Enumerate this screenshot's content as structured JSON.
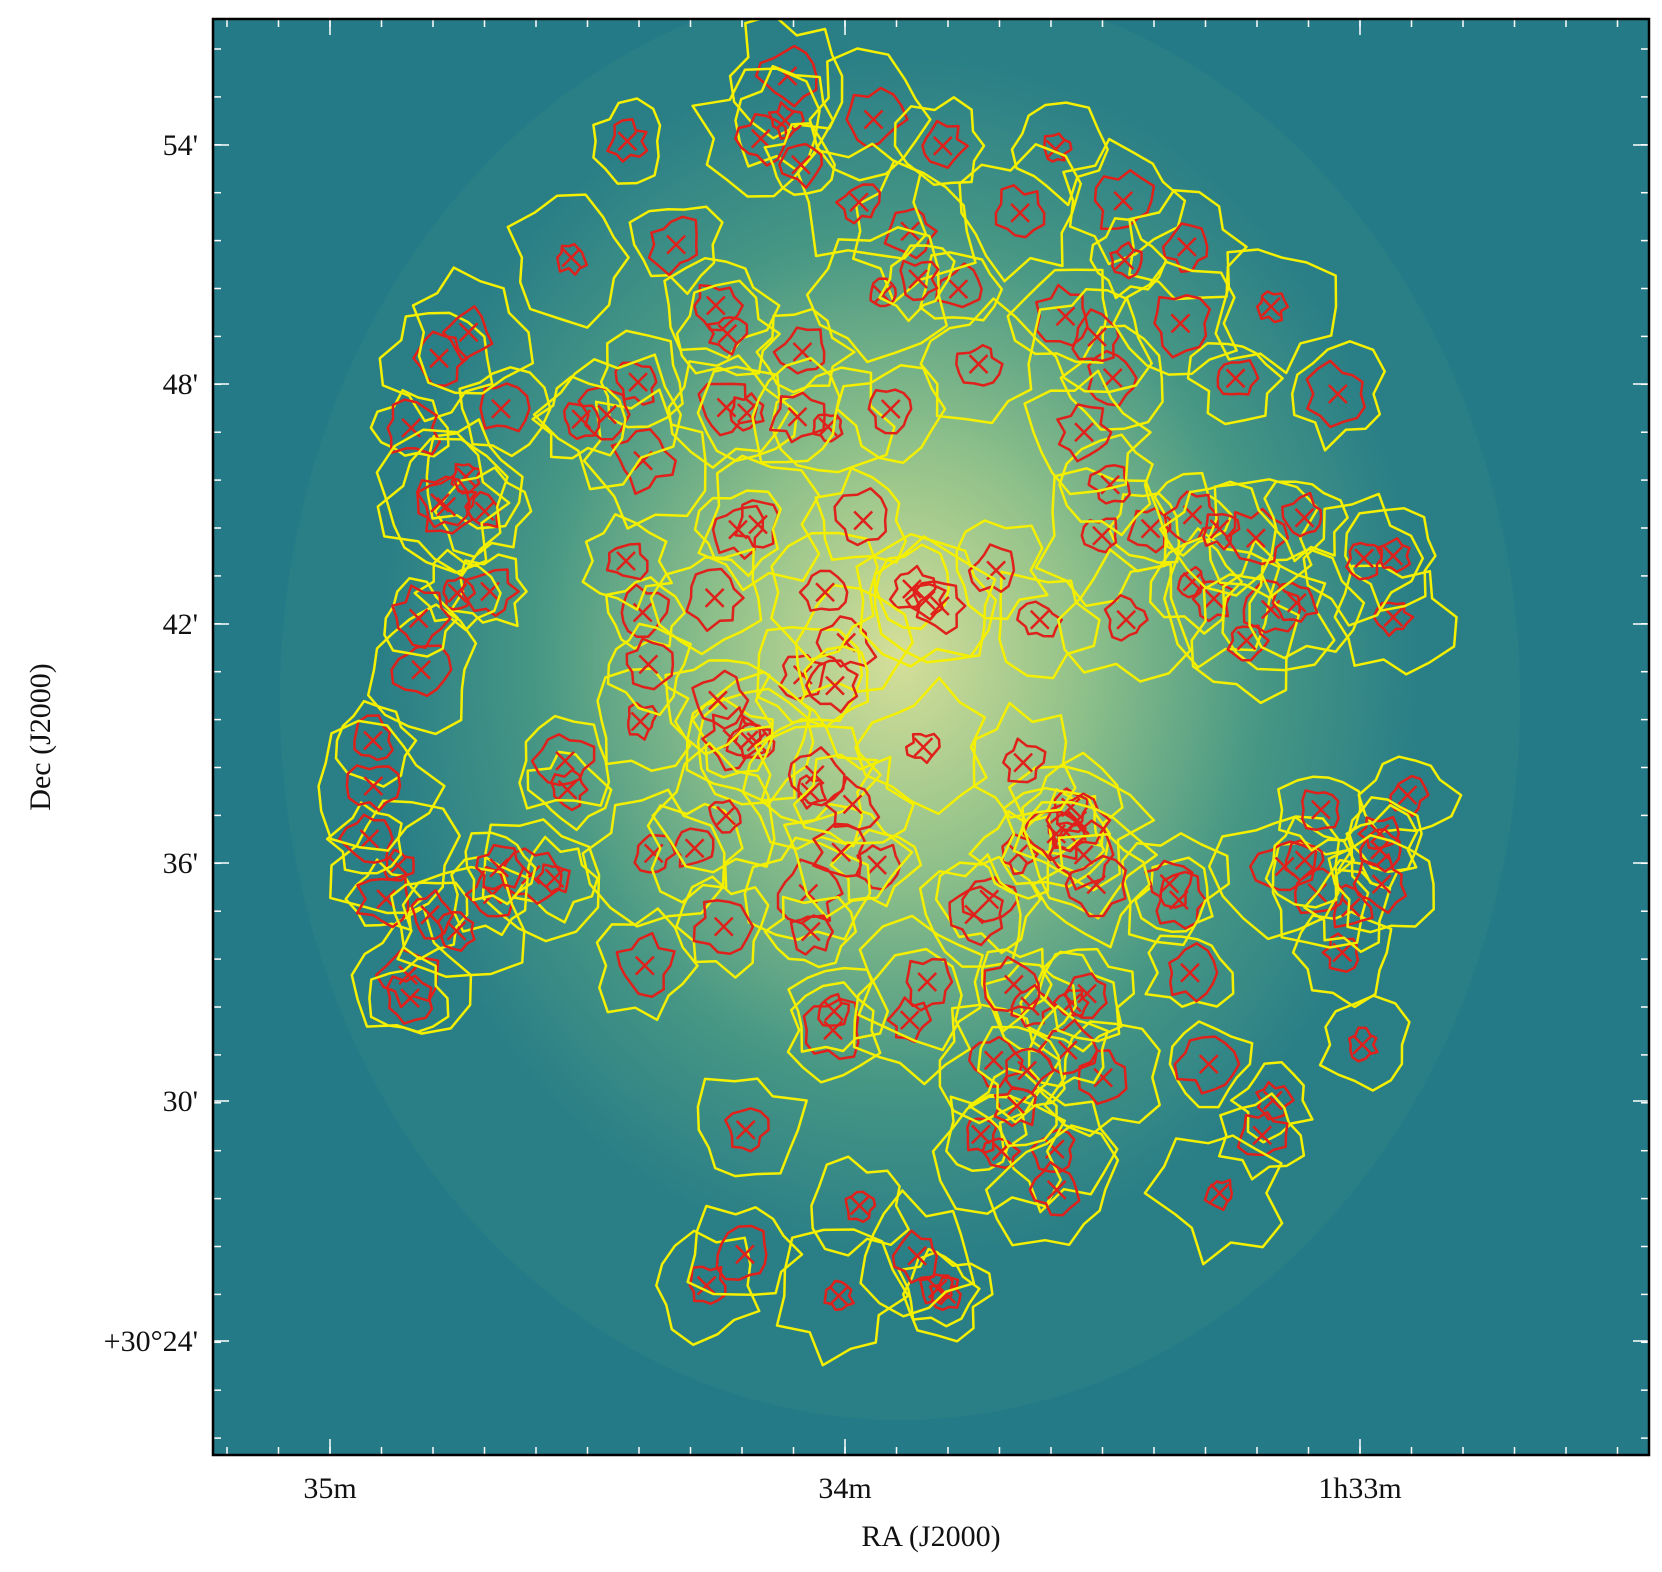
{
  "x_axis": {
    "label": "RA (J2000)",
    "ticks": [
      "35m",
      "34m",
      "1h33m"
    ]
  },
  "y_axis": {
    "label": "Dec (J2000)",
    "ticks": [
      "54'",
      "48'",
      "42'",
      "36'",
      "30'",
      "+30°24'"
    ]
  }
}
